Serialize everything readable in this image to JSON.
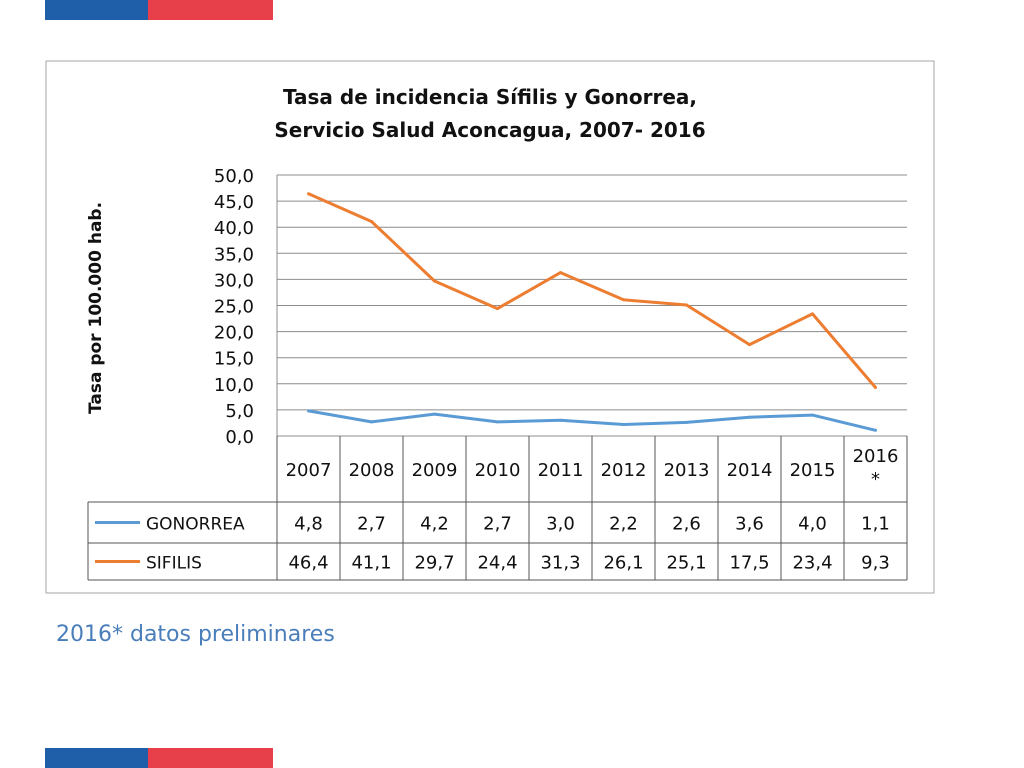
{
  "colors": {
    "brand_blue": "#1f5ea8",
    "brand_red": "#e8404a",
    "gonorrea": "#5b9bd5",
    "sifilis": "#ed7d31",
    "footnote": "#4a7ebb"
  },
  "chart_data": {
    "type": "line",
    "title_line1": "Tasa de incidencia Sífilis y Gonorrea,",
    "title_line2": "Servicio Salud Aconcagua, 2007- 2016",
    "ylabel": "Tasa por 100.000 hab.",
    "ylim": [
      0,
      50
    ],
    "yticks": [
      "0,0",
      "5,0",
      "10,0",
      "15,0",
      "20,0",
      "25,0",
      "30,0",
      "35,0",
      "40,0",
      "45,0",
      "50,0"
    ],
    "grid": true,
    "categories": [
      "2007",
      "2008",
      "2009",
      "2010",
      "2011",
      "2012",
      "2013",
      "2014",
      "2015",
      "2016 *"
    ],
    "series": [
      {
        "name": "GONORREA",
        "values": [
          4.8,
          2.7,
          4.2,
          2.7,
          3.0,
          2.2,
          2.6,
          3.6,
          4.0,
          1.1
        ],
        "labels": [
          "4,8",
          "2,7",
          "4,2",
          "2,7",
          "3,0",
          "2,2",
          "2,6",
          "3,6",
          "4,0",
          "1,1"
        ],
        "color": "#5b9bd5"
      },
      {
        "name": "SIFILIS",
        "values": [
          46.4,
          41.1,
          29.7,
          24.4,
          31.3,
          26.1,
          25.1,
          17.5,
          23.4,
          9.3
        ],
        "labels": [
          "46,4",
          "41,1",
          "29,7",
          "24,4",
          "31,3",
          "26,1",
          "25,1",
          "17,5",
          "23,4",
          "9,3"
        ],
        "color": "#ed7d31"
      }
    ],
    "legend": "data-table"
  },
  "footnote": "2016* datos preliminares"
}
